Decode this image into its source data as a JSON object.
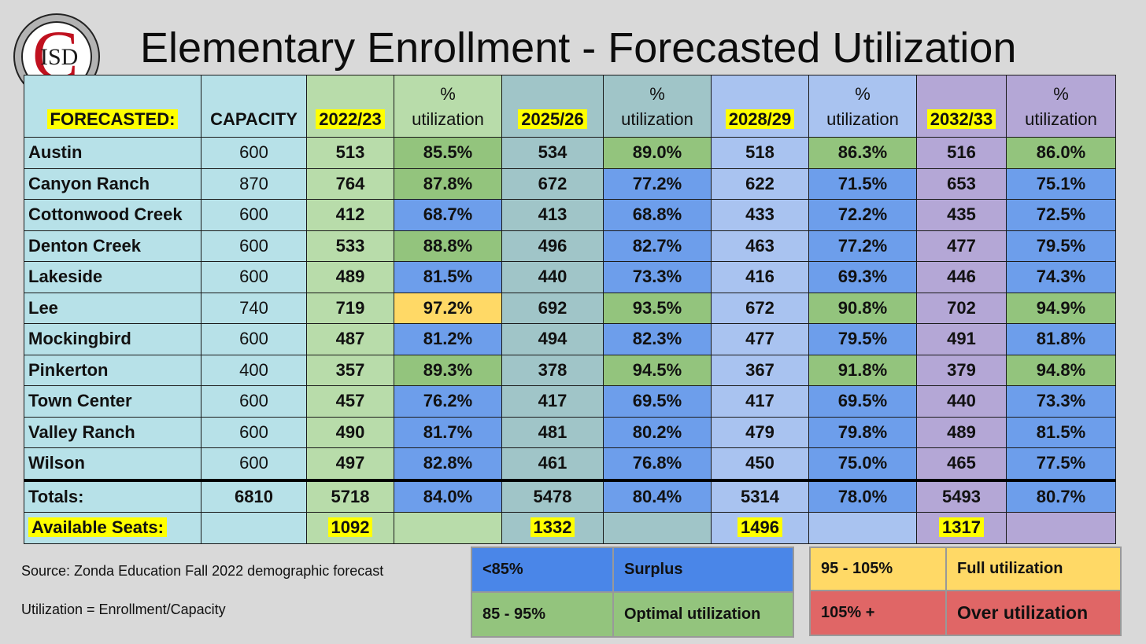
{
  "title": "Elementary Enrollment - Forecasted Utilization",
  "logo": {
    "letter": "C",
    "text": "ISD"
  },
  "table": {
    "header": {
      "forecasted": "FORECASTED:",
      "capacity": "CAPACITY",
      "y1": "2022/23",
      "y2": "2025/26",
      "y3": "2028/29",
      "y4": "2032/33",
      "pct_line1": "%",
      "pct_line2": "utilization"
    },
    "rows": [
      {
        "name": "Austin",
        "capacity": "600",
        "y1": "513",
        "u1": "85.5%",
        "y2": "534",
        "u2": "89.0%",
        "y3": "518",
        "u3": "86.3%",
        "y4": "516",
        "u4": "86.0%"
      },
      {
        "name": "Canyon Ranch",
        "capacity": "870",
        "y1": "764",
        "u1": "87.8%",
        "y2": "672",
        "u2": "77.2%",
        "y3": "622",
        "u3": "71.5%",
        "y4": "653",
        "u4": "75.1%"
      },
      {
        "name": "Cottonwood Creek",
        "capacity": "600",
        "y1": "412",
        "u1": "68.7%",
        "y2": "413",
        "u2": "68.8%",
        "y3": "433",
        "u3": "72.2%",
        "y4": "435",
        "u4": "72.5%"
      },
      {
        "name": "Denton Creek",
        "capacity": "600",
        "y1": "533",
        "u1": "88.8%",
        "y2": "496",
        "u2": "82.7%",
        "y3": "463",
        "u3": "77.2%",
        "y4": "477",
        "u4": "79.5%"
      },
      {
        "name": "Lakeside",
        "capacity": "600",
        "y1": "489",
        "u1": "81.5%",
        "y2": "440",
        "u2": "73.3%",
        "y3": "416",
        "u3": "69.3%",
        "y4": "446",
        "u4": "74.3%"
      },
      {
        "name": "Lee",
        "capacity": "740",
        "y1": "719",
        "u1": "97.2%",
        "y2": "692",
        "u2": "93.5%",
        "y3": "672",
        "u3": "90.8%",
        "y4": "702",
        "u4": "94.9%"
      },
      {
        "name": "Mockingbird",
        "capacity": "600",
        "y1": "487",
        "u1": "81.2%",
        "y2": "494",
        "u2": "82.3%",
        "y3": "477",
        "u3": "79.5%",
        "y4": "491",
        "u4": "81.8%"
      },
      {
        "name": "Pinkerton",
        "capacity": "400",
        "y1": "357",
        "u1": "89.3%",
        "y2": "378",
        "u2": "94.5%",
        "y3": "367",
        "u3": "91.8%",
        "y4": "379",
        "u4": "94.8%"
      },
      {
        "name": "Town Center",
        "capacity": "600",
        "y1": "457",
        "u1": "76.2%",
        "y2": "417",
        "u2": "69.5%",
        "y3": "417",
        "u3": "69.5%",
        "y4": "440",
        "u4": "73.3%"
      },
      {
        "name": "Valley Ranch",
        "capacity": "600",
        "y1": "490",
        "u1": "81.7%",
        "y2": "481",
        "u2": "80.2%",
        "y3": "479",
        "u3": "79.8%",
        "y4": "489",
        "u4": "81.5%"
      },
      {
        "name": "Wilson",
        "capacity": "600",
        "y1": "497",
        "u1": "82.8%",
        "y2": "461",
        "u2": "76.8%",
        "y3": "450",
        "u3": "75.0%",
        "y4": "465",
        "u4": "77.5%"
      }
    ],
    "totals": {
      "label": "Totals:",
      "capacity": "6810",
      "y1": "5718",
      "u1": "84.0%",
      "y2": "5478",
      "u2": "80.4%",
      "y3": "5314",
      "u3": "78.0%",
      "y4": "5493",
      "u4": "80.7%"
    },
    "seats": {
      "label": "Available Seats:",
      "y1": "1092",
      "y2": "1332",
      "y3": "1496",
      "y4": "1317"
    }
  },
  "notes": {
    "source": "Source: Zonda Education Fall 2022 demographic forecast",
    "formula": "Utilization = Enrollment/Capacity"
  },
  "legend": [
    {
      "range": "<85%",
      "meaning": "Surplus",
      "color": "#4a86e8"
    },
    {
      "range": "85 - 95%",
      "meaning": "Optimal utilization",
      "color": "#93c47d"
    },
    {
      "range": "95 - 105%",
      "meaning": "Full utilization",
      "color": "#ffd966"
    },
    {
      "range": "105% +",
      "meaning": "Over utilization",
      "color": "#e06666"
    }
  ],
  "colors": {
    "background": "#d9d9d9",
    "label_column": "#b7e1e8",
    "year_2022_23": "#b8dcaa",
    "year_2025_26": "#a0c5c8",
    "year_2028_29": "#a9c3f0",
    "year_2032_33": "#b4a7d6",
    "util_surplus": "#6d9eeb",
    "util_optimal": "#93c47d",
    "util_full": "#ffd966",
    "highlight": "#ffff00",
    "logo_red": "#c0111f"
  }
}
